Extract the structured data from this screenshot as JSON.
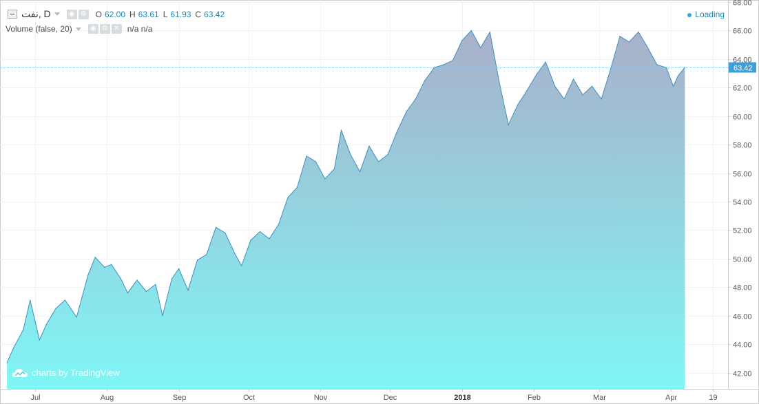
{
  "legend": {
    "symbol": "نفت, D",
    "open_label": "O",
    "open": "62.00",
    "high_label": "H",
    "high": "63.61",
    "low_label": "L",
    "low": "61.93",
    "close_label": "C",
    "close": "63.42",
    "volume_label": "Volume (false, 20)",
    "volume_value": "n/a n/a"
  },
  "status": {
    "loading": "Loading"
  },
  "watermark": "charts by TradingView",
  "icons": {
    "collapse": "minus-square-icon",
    "settings": "gear-icon",
    "eye": "eye-icon",
    "close": "close-icon",
    "dropdown": "caret-down-icon",
    "logo": "cloud-logo-icon"
  },
  "colors": {
    "line": "#3e8fbf",
    "area_top": "#a9b0c9",
    "area_bottom": "#7ff6f6",
    "price_label_bg": "#3e9fd8",
    "accent_text": "#1e88b4"
  },
  "chart_data": {
    "type": "area",
    "y_axis_side": "right",
    "ylim": [
      41.0,
      68.0
    ],
    "y_ticks": [
      "42.00",
      "44.00",
      "46.00",
      "48.00",
      "50.00",
      "52.00",
      "54.00",
      "56.00",
      "58.00",
      "60.00",
      "62.00",
      "64.00",
      "66.00",
      "68.00"
    ],
    "x_tick_labels": [
      "Jul",
      "Aug",
      "Sep",
      "Oct",
      "Nov",
      "Dec",
      "2018",
      "Feb",
      "Mar",
      "Apr",
      "19"
    ],
    "last_price_label": "63.42",
    "grid": true,
    "series": [
      {
        "x": [
          "2017-06-19",
          "2017-06-22",
          "2017-06-26",
          "2017-06-29",
          "2017-07-03",
          "2017-07-06",
          "2017-07-10",
          "2017-07-14",
          "2017-07-19",
          "2017-07-24",
          "2017-07-27",
          "2017-07-31",
          "2017-08-03",
          "2017-08-07",
          "2017-08-10",
          "2017-08-14",
          "2017-08-18",
          "2017-08-22",
          "2017-08-25",
          "2017-08-29",
          "2017-09-01",
          "2017-09-05",
          "2017-09-09",
          "2017-09-13",
          "2017-09-17",
          "2017-09-21",
          "2017-09-25",
          "2017-09-28",
          "2017-10-02",
          "2017-10-06",
          "2017-10-10",
          "2017-10-14",
          "2017-10-18",
          "2017-10-22",
          "2017-10-26",
          "2017-10-30",
          "2017-11-03",
          "2017-11-07",
          "2017-11-10",
          "2017-11-14",
          "2017-11-18",
          "2017-11-22",
          "2017-11-26",
          "2017-11-30",
          "2017-12-04",
          "2017-12-08",
          "2017-12-12",
          "2017-12-16",
          "2017-12-20",
          "2017-12-24",
          "2017-12-28",
          "2018-01-01",
          "2018-01-05",
          "2018-01-09",
          "2018-01-13",
          "2018-01-17",
          "2018-01-21",
          "2018-01-25",
          "2018-01-29",
          "2018-02-02",
          "2018-02-06",
          "2018-02-10",
          "2018-02-14",
          "2018-02-18",
          "2018-02-22",
          "2018-02-26",
          "2018-03-02",
          "2018-03-06",
          "2018-03-10",
          "2018-03-14",
          "2018-03-18",
          "2018-03-22",
          "2018-03-26",
          "2018-03-30",
          "2018-04-02",
          "2018-04-04",
          "2018-04-07"
        ],
        "y": [
          42.7,
          43.8,
          45.0,
          47.1,
          44.3,
          45.4,
          46.5,
          47.1,
          45.9,
          48.9,
          50.1,
          49.4,
          49.6,
          48.6,
          47.6,
          48.5,
          47.7,
          48.2,
          46.0,
          48.6,
          49.3,
          47.8,
          49.9,
          50.3,
          52.2,
          51.8,
          50.4,
          49.5,
          51.3,
          51.9,
          51.4,
          52.4,
          54.3,
          55.0,
          57.2,
          56.8,
          55.6,
          56.3,
          59.0,
          57.3,
          56.1,
          57.9,
          56.8,
          57.3,
          58.9,
          60.3,
          61.2,
          62.5,
          63.4,
          63.6,
          63.9,
          65.3,
          66.0,
          64.8,
          65.9,
          62.4,
          59.4,
          60.8,
          61.8,
          62.9,
          63.8,
          62.1,
          61.2,
          62.6,
          61.5,
          62.1,
          61.2,
          63.3,
          65.6,
          65.2,
          65.9,
          64.8,
          63.6,
          63.4,
          62.1,
          62.8,
          63.42
        ]
      }
    ]
  }
}
